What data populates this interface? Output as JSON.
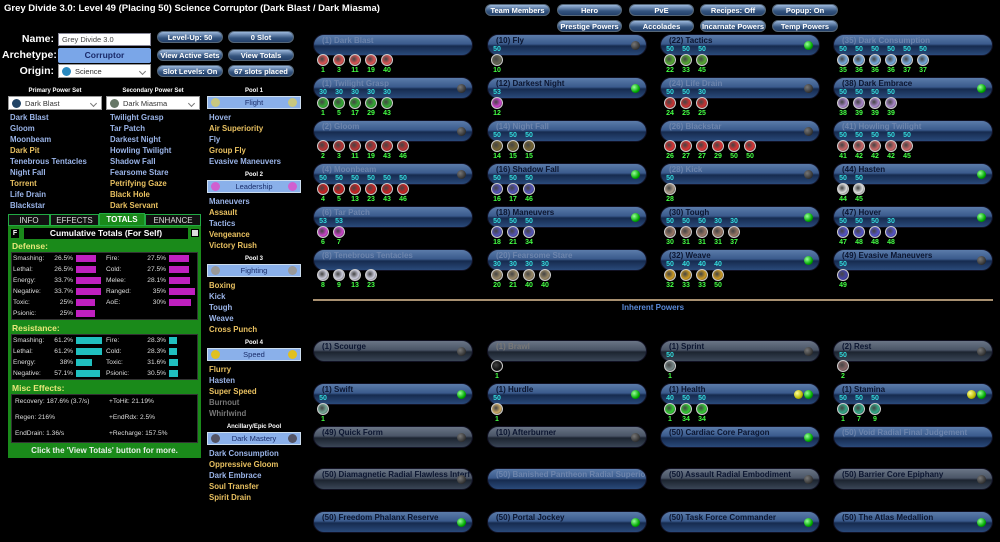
{
  "title": "Grey Divide 3.0: Level 49 (Placing 50) Science Corruptor (Dark Blast / Dark Miasma)",
  "build": {
    "name_label": "Name:",
    "name_value": "Grey Divide 3.0",
    "archetype_label": "Archetype:",
    "archetype": "Corruptor",
    "origin_label": "Origin:",
    "origin": "Science"
  },
  "buttons": {
    "level_up": "Level-Up: 50",
    "zero_slot": "0 Slot",
    "view_active_sets": "View Active Sets",
    "view_totals": "View Totals",
    "slot_levels": "Slot Levels: On",
    "slots_placed": "67 slots placed"
  },
  "top_buttons": {
    "team_members": "Team Members",
    "hero": "Hero",
    "pve": "PvE",
    "recipes": "Recipes: Off",
    "popup": "Popup: On",
    "prestige": "Prestige Powers",
    "accolades": "Accolades",
    "incarnate": "Incarnate Powers",
    "temp": "Temp Powers"
  },
  "primary": {
    "header": "Primary Power Set",
    "selected": "Dark Blast",
    "powers": [
      {
        "n": "Dark Blast",
        "c": "#9ab4e8"
      },
      {
        "n": "Gloom",
        "c": "#9ab4e8"
      },
      {
        "n": "Moonbeam",
        "c": "#9ab4e8"
      },
      {
        "n": "Dark Pit",
        "c": "#e8c060"
      },
      {
        "n": "Tenebrous Tentacles",
        "c": "#9ab4e8"
      },
      {
        "n": "Night Fall",
        "c": "#9ab4e8"
      },
      {
        "n": "Torrent",
        "c": "#e8c060"
      },
      {
        "n": "Life Drain",
        "c": "#9ab4e8"
      },
      {
        "n": "Blackstar",
        "c": "#9ab4e8"
      }
    ]
  },
  "secondary": {
    "header": "Secondary Power Set",
    "selected": "Dark Miasma",
    "powers": [
      {
        "n": "Twilight Grasp",
        "c": "#9ab4e8"
      },
      {
        "n": "Tar Patch",
        "c": "#9ab4e8"
      },
      {
        "n": "Darkest Night",
        "c": "#9ab4e8"
      },
      {
        "n": "Howling Twilight",
        "c": "#9ab4e8"
      },
      {
        "n": "Shadow Fall",
        "c": "#9ab4e8"
      },
      {
        "n": "Fearsome Stare",
        "c": "#9ab4e8"
      },
      {
        "n": "Petrifying Gaze",
        "c": "#e8c060"
      },
      {
        "n": "Black Hole",
        "c": "#e8c060"
      },
      {
        "n": "Dark Servant",
        "c": "#e8c060"
      }
    ]
  },
  "pools": [
    {
      "header": "Pool 1",
      "name": "Flight",
      "icon": "#c8c880",
      "powers": [
        {
          "n": "Hover",
          "c": "#9ab4e8"
        },
        {
          "n": "Air Superiority",
          "c": "#e8c060"
        },
        {
          "n": "Fly",
          "c": "#9ab4e8"
        },
        {
          "n": "Group Fly",
          "c": "#e8c060"
        },
        {
          "n": "Evasive Maneuvers",
          "c": "#9ab4e8"
        }
      ]
    },
    {
      "header": "Pool 2",
      "name": "Leadership",
      "icon": "#d060d0",
      "powers": [
        {
          "n": "Maneuvers",
          "c": "#9ab4e8"
        },
        {
          "n": "Assault",
          "c": "#e8c060"
        },
        {
          "n": "Tactics",
          "c": "#9ab4e8"
        },
        {
          "n": "Vengeance",
          "c": "#e8c060"
        },
        {
          "n": "Victory Rush",
          "c": "#e8c060"
        }
      ]
    },
    {
      "header": "Pool 3",
      "name": "Fighting",
      "icon": "#999",
      "powers": [
        {
          "n": "Boxing",
          "c": "#e8c060"
        },
        {
          "n": "Kick",
          "c": "#9ab4e8"
        },
        {
          "n": "Tough",
          "c": "#9ab4e8"
        },
        {
          "n": "Weave",
          "c": "#9ab4e8"
        },
        {
          "n": "Cross Punch",
          "c": "#e8c060"
        }
      ]
    },
    {
      "header": "Pool 4",
      "name": "Speed",
      "icon": "#e0c020",
      "powers": [
        {
          "n": "Flurry",
          "c": "#e8c060"
        },
        {
          "n": "Hasten",
          "c": "#9ab4e8"
        },
        {
          "n": "Super Speed",
          "c": "#e8c060"
        },
        {
          "n": "Burnout",
          "c": "#777"
        },
        {
          "n": "Whirlwind",
          "c": "#777"
        }
      ]
    },
    {
      "header": "Ancillary/Epic Pool",
      "name": "Dark Mastery",
      "icon": "#556",
      "powers": [
        {
          "n": "Dark Consumption",
          "c": "#9ab4e8"
        },
        {
          "n": "Oppressive Gloom",
          "c": "#e8c060"
        },
        {
          "n": "Dark Embrace",
          "c": "#9ab4e8"
        },
        {
          "n": "Soul Transfer",
          "c": "#e8c060"
        },
        {
          "n": "Spirit Drain",
          "c": "#e8c060"
        }
      ]
    }
  ],
  "tabs": [
    "INFO",
    "EFFECTS",
    "TOTALS",
    "ENHANCE"
  ],
  "active_tab": "TOTALS",
  "totals": {
    "f_button": "F",
    "title": "Cumulative Totals (For Self)",
    "defense_label": "Defense:",
    "resistance_label": "Resistance:",
    "misc_label": "Misc Effects:",
    "footer": "Click the 'View Totals' button for more.",
    "defense_left": [
      {
        "k": "Smashing:",
        "v": "26.5%",
        "p": 26.5
      },
      {
        "k": "Lethal:",
        "v": "26.5%",
        "p": 26.5
      },
      {
        "k": "Energy:",
        "v": "33.7%",
        "p": 33.7
      },
      {
        "k": "Negative:",
        "v": "33.7%",
        "p": 33.7
      },
      {
        "k": "Toxic:",
        "v": "25%",
        "p": 25
      },
      {
        "k": "Psionic:",
        "v": "25%",
        "p": 25
      }
    ],
    "defense_right": [
      {
        "k": "Fire:",
        "v": "27.5%",
        "p": 27.5
      },
      {
        "k": "Cold:",
        "v": "27.5%",
        "p": 27.5
      },
      {
        "k": "Melee:",
        "v": "28.1%",
        "p": 28.1
      },
      {
        "k": "Ranged:",
        "v": "35%",
        "p": 35
      },
      {
        "k": "AoE:",
        "v": "30%",
        "p": 30
      }
    ],
    "resistance_left": [
      {
        "k": "Smashing:",
        "v": "61.2%",
        "p": 61.2
      },
      {
        "k": "Lethal:",
        "v": "61.2%",
        "p": 61.2
      },
      {
        "k": "Energy:",
        "v": "38%",
        "p": 38
      },
      {
        "k": "Negative:",
        "v": "57.1%",
        "p": 57.1
      }
    ],
    "resistance_right": [
      {
        "k": "Fire:",
        "v": "28.3%",
        "p": 28.3
      },
      {
        "k": "Cold:",
        "v": "28.3%",
        "p": 28.3
      },
      {
        "k": "Toxic:",
        "v": "31.6%",
        "p": 31.6
      },
      {
        "k": "Psionic:",
        "v": "30.5%",
        "p": 30.5
      }
    ],
    "misc_left": [
      "Recovery: 187.6% (3.7/s)",
      "Regen: 216%",
      "EndDrain: 1.36/s"
    ],
    "misc_right": [
      "+ToHit: 21.19%",
      "+EndRdx: 2.5%",
      "+Recharge: 157.5%"
    ]
  },
  "inherent_label": "Inherent Powers",
  "powers": [
    [
      {
        "n": "(1) Dark Blast",
        "dim": 1,
        "l": "none",
        "c": "#d55",
        "s": [
          [
            "",
            1
          ],
          [
            "",
            3
          ],
          [
            "",
            11
          ],
          [
            "",
            19
          ],
          [
            "",
            40
          ]
        ]
      },
      {
        "n": "(1) Twilight Grasp",
        "dim": 1,
        "l": "off",
        "c": "#3a3",
        "s": [
          [
            "30",
            1
          ],
          [
            "30",
            5
          ],
          [
            "30",
            17
          ],
          [
            "30",
            29
          ],
          [
            "30",
            43
          ]
        ]
      },
      {
        "n": "(2) Gloom",
        "dim": 1,
        "l": "off",
        "c": "#b33",
        "s": [
          [
            "",
            2
          ],
          [
            "",
            3
          ],
          [
            "",
            11
          ],
          [
            "",
            19
          ],
          [
            "",
            43
          ],
          [
            "",
            46
          ]
        ]
      },
      {
        "n": "(4) Moonbeam",
        "dim": 1,
        "l": "off",
        "c": "#c22",
        "s": [
          [
            "50",
            4
          ],
          [
            "50",
            5
          ],
          [
            "50",
            13
          ],
          [
            "50",
            23
          ],
          [
            "50",
            43
          ],
          [
            "50",
            46
          ]
        ]
      },
      {
        "n": "(6) Tar Patch",
        "dim": 1,
        "l": "none",
        "c": "#c4c",
        "s": [
          [
            "53",
            6
          ],
          [
            "53",
            7
          ]
        ]
      },
      {
        "n": "(8) Tenebrous Tentacles",
        "dim": 1,
        "l": "none",
        "c": "#ccd",
        "s": [
          [
            "",
            8
          ],
          [
            "",
            9
          ],
          [
            "",
            13
          ],
          [
            "",
            23
          ]
        ]
      }
    ],
    [
      {
        "n": "(10) Fly",
        "l": "off",
        "c": "#665",
        "s": [
          [
            "50",
            10
          ]
        ]
      },
      {
        "n": "(12) Darkest Night",
        "l": "green",
        "c": "#c4c",
        "s": [
          [
            "53",
            12
          ]
        ]
      },
      {
        "n": "(14) Night Fall",
        "dim": 1,
        "l": "none",
        "c": "#763",
        "s": [
          [
            "50",
            14
          ],
          [
            "50",
            15
          ],
          [
            "50",
            15
          ]
        ]
      },
      {
        "n": "(16) Shadow Fall",
        "l": "green",
        "c": "#55b",
        "s": [
          [
            "50",
            16
          ],
          [
            "50",
            17
          ],
          [
            "50",
            46
          ]
        ]
      },
      {
        "n": "(18) Maneuvers",
        "l": "green",
        "c": "#55b",
        "s": [
          [
            "50",
            18
          ],
          [
            "50",
            21
          ],
          [
            "50",
            34
          ]
        ]
      },
      {
        "n": "(20) Fearsome Stare",
        "dim": 1,
        "l": "none",
        "c": "#986",
        "s": [
          [
            "30",
            20
          ],
          [
            "30",
            21
          ],
          [
            "30",
            40
          ],
          [
            "30",
            40
          ]
        ]
      }
    ],
    [
      {
        "n": "(22) Tactics",
        "l": "green",
        "c": "#5a3",
        "s": [
          [
            "50",
            22
          ],
          [
            "50",
            33
          ],
          [
            "50",
            45
          ]
        ]
      },
      {
        "n": "(24) Life Drain",
        "dim": 1,
        "l": "off",
        "c": "#c33",
        "s": [
          [
            "50",
            24
          ],
          [
            "50",
            25
          ],
          [
            "30",
            25
          ]
        ]
      },
      {
        "n": "(26) Blackstar",
        "dim": 1,
        "l": "off",
        "c": "#d33",
        "s": [
          [
            "",
            26
          ],
          [
            "",
            27
          ],
          [
            "",
            27
          ],
          [
            "",
            29
          ],
          [
            "",
            50
          ],
          [
            "",
            50
          ]
        ]
      },
      {
        "n": "(28) Kick",
        "dim": 1,
        "l": "off",
        "c": "#a98",
        "s": [
          [
            "50",
            28
          ]
        ]
      },
      {
        "n": "(30) Tough",
        "l": "green",
        "c": "#976",
        "s": [
          [
            "50",
            30
          ],
          [
            "50",
            31
          ],
          [
            "50",
            31
          ],
          [
            "30",
            31
          ],
          [
            "30",
            37
          ]
        ]
      },
      {
        "n": "(32) Weave",
        "l": "green",
        "c": "#c92",
        "s": [
          [
            "50",
            32
          ],
          [
            "40",
            33
          ],
          [
            "40",
            33
          ],
          [
            "40",
            50
          ]
        ]
      }
    ],
    [
      {
        "n": "(35) Dark Consumption",
        "dim": 1,
        "l": "none",
        "c": "#7ad",
        "s": [
          [
            "50",
            35
          ],
          [
            "50",
            36
          ],
          [
            "50",
            36
          ],
          [
            "50",
            36
          ],
          [
            "50",
            37
          ],
          [
            "50",
            37
          ]
        ]
      },
      {
        "n": "(38) Dark Embrace",
        "l": "green",
        "c": "#a8c",
        "s": [
          [
            "50",
            38
          ],
          [
            "50",
            39
          ],
          [
            "50",
            39
          ],
          [
            "50",
            39
          ]
        ]
      },
      {
        "n": "(41) Howling Twilight",
        "dim": 1,
        "l": "none",
        "c": "#c66",
        "s": [
          [
            "50",
            41
          ],
          [
            "50",
            42
          ],
          [
            "50",
            42
          ],
          [
            "50",
            42
          ],
          [
            "50",
            45
          ]
        ]
      },
      {
        "n": "(44) Hasten",
        "l": "green",
        "c": "#ddd",
        "s": [
          [
            "50",
            44
          ],
          [
            "50",
            45
          ]
        ]
      },
      {
        "n": "(47) Hover",
        "l": "green",
        "c": "#55c",
        "s": [
          [
            "50",
            47
          ],
          [
            "50",
            48
          ],
          [
            "50",
            48
          ],
          [
            "30",
            48
          ]
        ]
      },
      {
        "n": "(49) Evasive Maneuvers",
        "l": "off",
        "c": "#44a",
        "s": [
          [
            "50",
            49
          ]
        ]
      }
    ]
  ],
  "inherent": [
    {
      "n": "(1) Scourge",
      "l": "off",
      "g": 1,
      "c": "#888",
      "s": []
    },
    {
      "n": "(1) Brawl",
      "dim": 1,
      "l": "none",
      "g": 1,
      "c": "#111",
      "s": [
        [
          "",
          1
        ]
      ]
    },
    {
      "n": "(1) Sprint",
      "l": "off",
      "g": 1,
      "c": "#788",
      "s": [
        [
          "50",
          1
        ]
      ]
    },
    {
      "n": "(2) Rest",
      "l": "off",
      "g": 1,
      "c": "#866",
      "s": [
        [
          "50",
          2
        ]
      ]
    },
    {
      "n": "(1) Swift",
      "l": "green",
      "c": "#7a9",
      "s": [
        [
          "50",
          1
        ]
      ]
    },
    {
      "n": "(1) Hurdle",
      "l": "green",
      "c": "#ca6",
      "s": [
        [
          "50",
          1
        ]
      ]
    },
    {
      "n": "(1) Health",
      "l": "yg",
      "c": "#3c3",
      "s": [
        [
          "40",
          1
        ],
        [
          "50",
          34
        ],
        [
          "50",
          34
        ]
      ]
    },
    {
      "n": "(1) Stamina",
      "l": "yg",
      "c": "#3a8",
      "s": [
        [
          "50",
          1
        ],
        [
          "50",
          7
        ],
        [
          "50",
          9
        ]
      ]
    },
    {
      "n": "(49) Quick Form",
      "l": "off",
      "g": 1,
      "s": []
    },
    {
      "n": "(10) Afterburner",
      "l": "off",
      "g": 1,
      "s": []
    },
    {
      "n": "(50) Cardiac Core Paragon",
      "l": "green",
      "s": []
    },
    {
      "n": "(50) Void Radial Final Judgement",
      "dim": 1,
      "l": "none",
      "s": []
    },
    {
      "n": "(50) Diamagnetic Radial Flawless Interf",
      "l": "off",
      "g": 1,
      "s": []
    },
    {
      "n": "(50) Banished Pantheon Radial Superio",
      "dim": 1,
      "l": "none",
      "s": []
    },
    {
      "n": "(50) Assault Radial Embodiment",
      "l": "off",
      "g": 1,
      "s": []
    },
    {
      "n": "(50) Barrier Core Epiphany",
      "l": "off",
      "g": 1,
      "s": []
    },
    {
      "n": "(50) Freedom Phalanx Reserve",
      "l": "green",
      "s": []
    },
    {
      "n": "(50) Portal Jockey",
      "l": "green",
      "s": []
    },
    {
      "n": "(50) Task Force Commander",
      "l": "green",
      "s": []
    },
    {
      "n": "(50) The Atlas Medallion",
      "l": "green",
      "s": []
    }
  ]
}
